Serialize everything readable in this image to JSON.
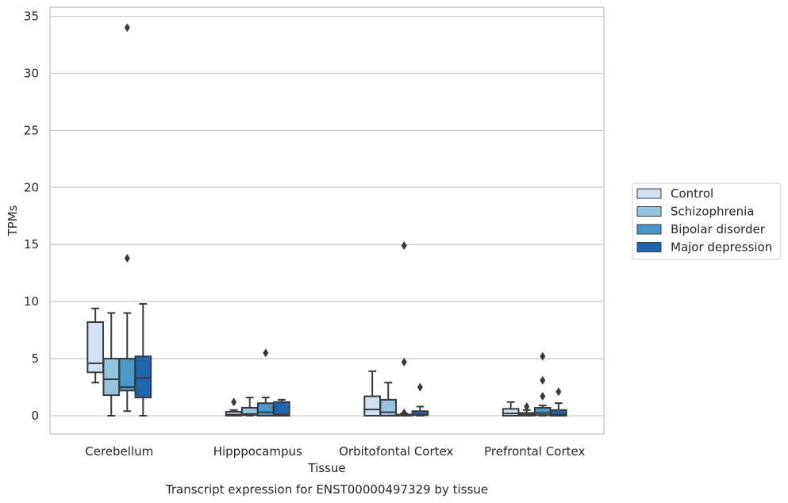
{
  "chart_data": {
    "type": "box",
    "caption": "Transcript expression for ENST00000497329 by tissue",
    "xlabel": "Tissue",
    "ylabel": "TPMs",
    "ylim": [
      -1.6,
      35.8
    ],
    "yticks": [
      0,
      5,
      10,
      15,
      20,
      25,
      30,
      35
    ],
    "grid": "horizontal",
    "legend_position": "right",
    "categories": [
      "Cerebellum",
      "Hipppocampus",
      "Orbitofontal Cortex",
      "Prefrontal Cortex"
    ],
    "series": [
      {
        "name": "Control",
        "color": "#d0e1f2",
        "boxes": [
          {
            "whisker_low": 2.9,
            "q1": 3.8,
            "median": 4.6,
            "q3": 8.2,
            "whisker_high": 9.4,
            "outliers": []
          },
          {
            "whisker_low": 0.0,
            "q1": 0.0,
            "median": 0.1,
            "q3": 0.35,
            "whisker_high": 0.5,
            "outliers": [
              1.2
            ]
          },
          {
            "whisker_low": 0.0,
            "q1": 0.0,
            "median": 0.55,
            "q3": 1.7,
            "whisker_high": 3.9,
            "outliers": []
          },
          {
            "whisker_low": 0.0,
            "q1": 0.0,
            "median": 0.2,
            "q3": 0.6,
            "whisker_high": 1.2,
            "outliers": []
          }
        ]
      },
      {
        "name": "Schizophrenia",
        "color": "#94c4df",
        "boxes": [
          {
            "whisker_low": 0.0,
            "q1": 1.8,
            "median": 3.2,
            "q3": 5.0,
            "whisker_high": 9.0,
            "outliers": []
          },
          {
            "whisker_low": 0.0,
            "q1": 0.05,
            "median": 0.15,
            "q3": 0.7,
            "whisker_high": 1.6,
            "outliers": []
          },
          {
            "whisker_low": 0.0,
            "q1": 0.0,
            "median": 0.3,
            "q3": 1.4,
            "whisker_high": 2.9,
            "outliers": []
          },
          {
            "whisker_low": 0.0,
            "q1": 0.0,
            "median": 0.1,
            "q3": 0.25,
            "whisker_high": 0.5,
            "outliers": [
              0.8
            ]
          }
        ]
      },
      {
        "name": "Bipolar disorder",
        "color": "#4a98c9",
        "boxes": [
          {
            "whisker_low": 0.4,
            "q1": 2.2,
            "median": 2.5,
            "q3": 5.0,
            "whisker_high": 9.0,
            "outliers": [
              13.8,
              34.0
            ]
          },
          {
            "whisker_low": 0.0,
            "q1": 0.0,
            "median": 0.3,
            "q3": 1.1,
            "whisker_high": 1.6,
            "outliers": [
              5.5
            ]
          },
          {
            "whisker_low": 0.0,
            "q1": 0.0,
            "median": 0.05,
            "q3": 0.1,
            "whisker_high": 0.2,
            "outliers": [
              0.25,
              4.7,
              14.9
            ]
          },
          {
            "whisker_low": 0.0,
            "q1": 0.05,
            "median": 0.25,
            "q3": 0.7,
            "whisker_high": 0.9,
            "outliers": [
              1.7,
              3.1,
              5.2
            ]
          }
        ]
      },
      {
        "name": "Major depression",
        "color": "#2166ac",
        "boxes": [
          {
            "whisker_low": 0.0,
            "q1": 1.6,
            "median": 3.3,
            "q3": 5.2,
            "whisker_high": 9.8,
            "outliers": []
          },
          {
            "whisker_low": 0.0,
            "q1": 0.0,
            "median": 0.1,
            "q3": 1.2,
            "whisker_high": 1.4,
            "outliers": []
          },
          {
            "whisker_low": 0.0,
            "q1": 0.05,
            "median": 0.1,
            "q3": 0.4,
            "whisker_high": 0.8,
            "outliers": [
              2.5
            ]
          },
          {
            "whisker_low": 0.0,
            "q1": 0.0,
            "median": 0.1,
            "q3": 0.5,
            "whisker_high": 1.1,
            "outliers": [
              2.1
            ]
          }
        ]
      }
    ]
  }
}
